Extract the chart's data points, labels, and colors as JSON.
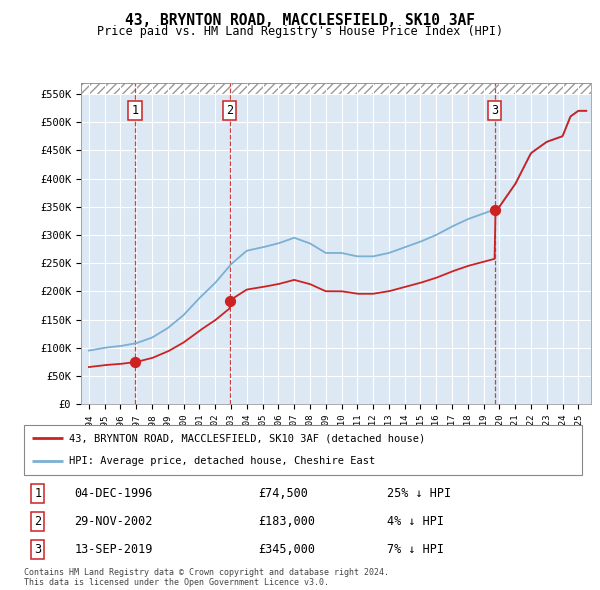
{
  "title": "43, BRYNTON ROAD, MACCLESFIELD, SK10 3AF",
  "subtitle": "Price paid vs. HM Land Registry's House Price Index (HPI)",
  "ylim": [
    0,
    550000
  ],
  "yticks": [
    0,
    50000,
    100000,
    150000,
    200000,
    250000,
    300000,
    350000,
    400000,
    450000,
    500000,
    550000
  ],
  "hpi_color": "#7bafd4",
  "price_color": "#cc2222",
  "background_color": "#dce9f5",
  "grid_color": "#ffffff",
  "sales": [
    {
      "date_num": 1996.92,
      "price": 74500,
      "label": "1",
      "date_str": "04-DEC-1996",
      "pct": "25%"
    },
    {
      "date_num": 2002.91,
      "price": 183000,
      "label": "2",
      "date_str": "29-NOV-2002",
      "pct": "4%"
    },
    {
      "date_num": 2019.7,
      "price": 345000,
      "label": "3",
      "date_str": "13-SEP-2019",
      "pct": "7%"
    }
  ],
  "legend_line1": "43, BRYNTON ROAD, MACCLESFIELD, SK10 3AF (detached house)",
  "legend_line2": "HPI: Average price, detached house, Cheshire East",
  "footer1": "Contains HM Land Registry data © Crown copyright and database right 2024.",
  "footer2": "This data is licensed under the Open Government Licence v3.0.",
  "xmin": 1993.5,
  "xmax": 2025.8
}
